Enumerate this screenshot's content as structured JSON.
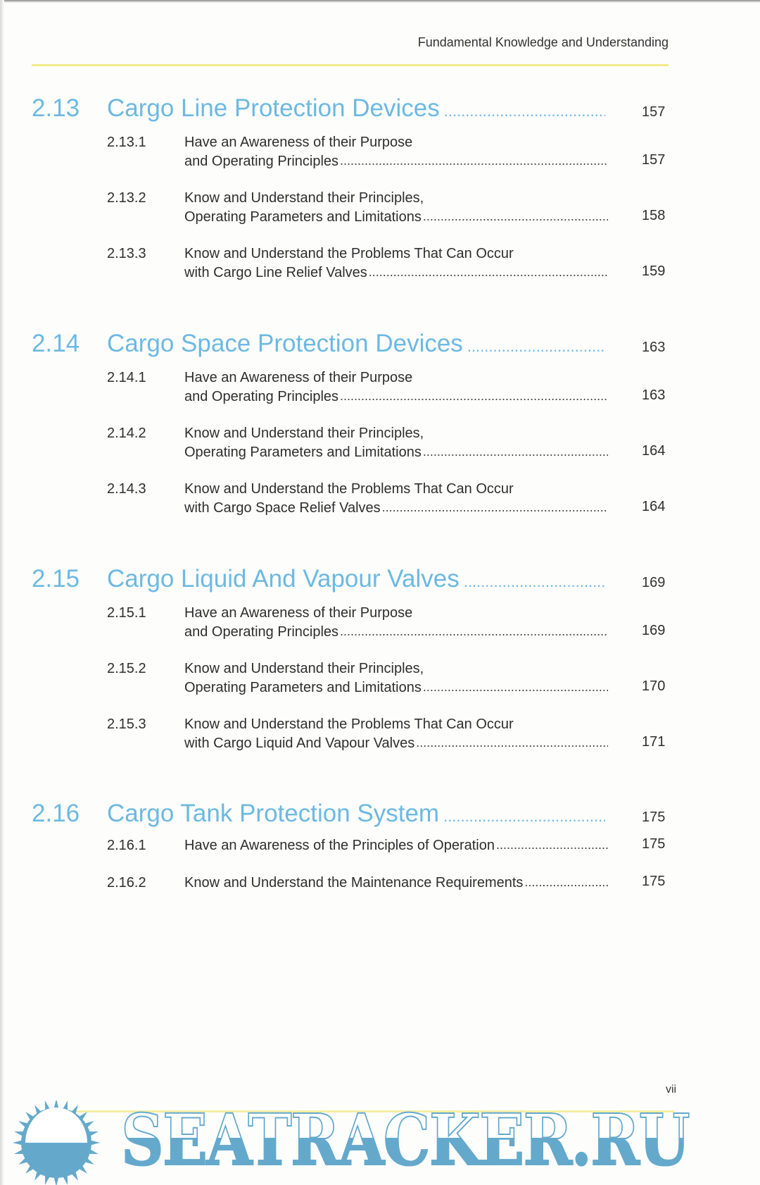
{
  "running_header": "Fundamental Knowledge and Understanding",
  "leader": "..............................................................................................................................................",
  "sections": [
    {
      "number": "2.13",
      "title": "Cargo Line Protection Devices",
      "page": "157",
      "subs": [
        {
          "number": "2.13.1",
          "line1": "Have an Awareness of their Purpose",
          "line2": "and Operating Principles",
          "page": "157"
        },
        {
          "number": "2.13.2",
          "line1": "Know and Understand their Principles,",
          "line2": "Operating Parameters and Limitations",
          "page": "158"
        },
        {
          "number": "2.13.3",
          "line1": "Know and Understand the Problems That Can Occur",
          "line2": "with Cargo Line Relief Valves",
          "page": "159"
        }
      ]
    },
    {
      "number": "2.14",
      "title": "Cargo Space Protection Devices",
      "page": "163",
      "subs": [
        {
          "number": "2.14.1",
          "line1": "Have an Awareness of their Purpose",
          "line2": "and Operating Principles",
          "page": "163"
        },
        {
          "number": "2.14.2",
          "line1": "Know and Understand their Principles,",
          "line2": "Operating Parameters and Limitations",
          "page": "164"
        },
        {
          "number": "2.14.3",
          "line1": "Know and Understand the Problems That Can Occur",
          "line2": "with Cargo Space Relief Valves",
          "page": "164"
        }
      ]
    },
    {
      "number": "2.15",
      "title": "Cargo Liquid And Vapour Valves",
      "page": "169",
      "subs": [
        {
          "number": "2.15.1",
          "line1": "Have an Awareness of their Purpose",
          "line2": "and Operating Principles",
          "page": "169"
        },
        {
          "number": "2.15.2",
          "line1": "Know and Understand their Principles,",
          "line2": "Operating Parameters and Limitations",
          "page": "170"
        },
        {
          "number": "2.15.3",
          "line1": "Know and Understand the Problems That Can Occur",
          "line2": "with Cargo Liquid And Vapour Valves",
          "page": "171"
        }
      ]
    },
    {
      "number": "2.16",
      "title": "Cargo Tank Protection System",
      "page": "175",
      "subs": [
        {
          "number": "2.16.1",
          "line2": "Have an Awareness of the Principles of Operation",
          "page": "175"
        },
        {
          "number": "2.16.2",
          "line2": "Know and Understand the Maintenance Requirements",
          "page": "175"
        }
      ]
    }
  ],
  "folio": "vii",
  "watermark": "SEATRACKER.RU",
  "colors": {
    "section_heading": "#6cb9e2",
    "rule": "#f3ea8c",
    "watermark": "#64a9cc"
  }
}
